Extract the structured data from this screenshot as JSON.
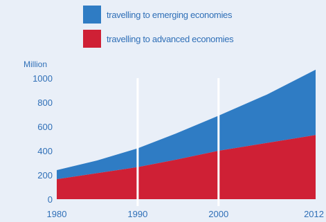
{
  "legend": {
    "items": [
      {
        "label": "travelling to emerging economies",
        "color": "#2f7cc4"
      },
      {
        "label": "travelling to advanced economies",
        "color": "#cf2035"
      }
    ]
  },
  "chart_data": {
    "type": "area",
    "stacked": true,
    "x": [
      1980,
      1990,
      2000,
      2012
    ],
    "x_ticks": [
      "1980",
      "1990",
      "2000",
      "2012"
    ],
    "y_ticks": [
      "0",
      "200",
      "400",
      "600",
      "800",
      "1000"
    ],
    "ylabel": "Million",
    "ylim": [
      0,
      1000
    ],
    "xlim": [
      1980,
      2012
    ],
    "grid": "vertical lines at 1990 and 2000",
    "series": [
      {
        "name": "travelling to advanced economies",
        "color": "#cf2035",
        "points": [
          [
            1980,
            165
          ],
          [
            1985,
            215
          ],
          [
            1990,
            265
          ],
          [
            1995,
            330
          ],
          [
            2000,
            400
          ],
          [
            2006,
            465
          ],
          [
            2012,
            530
          ]
        ]
      },
      {
        "name": "travelling to emerging economies",
        "color": "#2f7cc4",
        "points": [
          [
            1980,
            75
          ],
          [
            1985,
            105
          ],
          [
            1990,
            155
          ],
          [
            1995,
            220
          ],
          [
            2000,
            290
          ],
          [
            2006,
            400
          ],
          [
            2012,
            540
          ]
        ]
      }
    ]
  }
}
